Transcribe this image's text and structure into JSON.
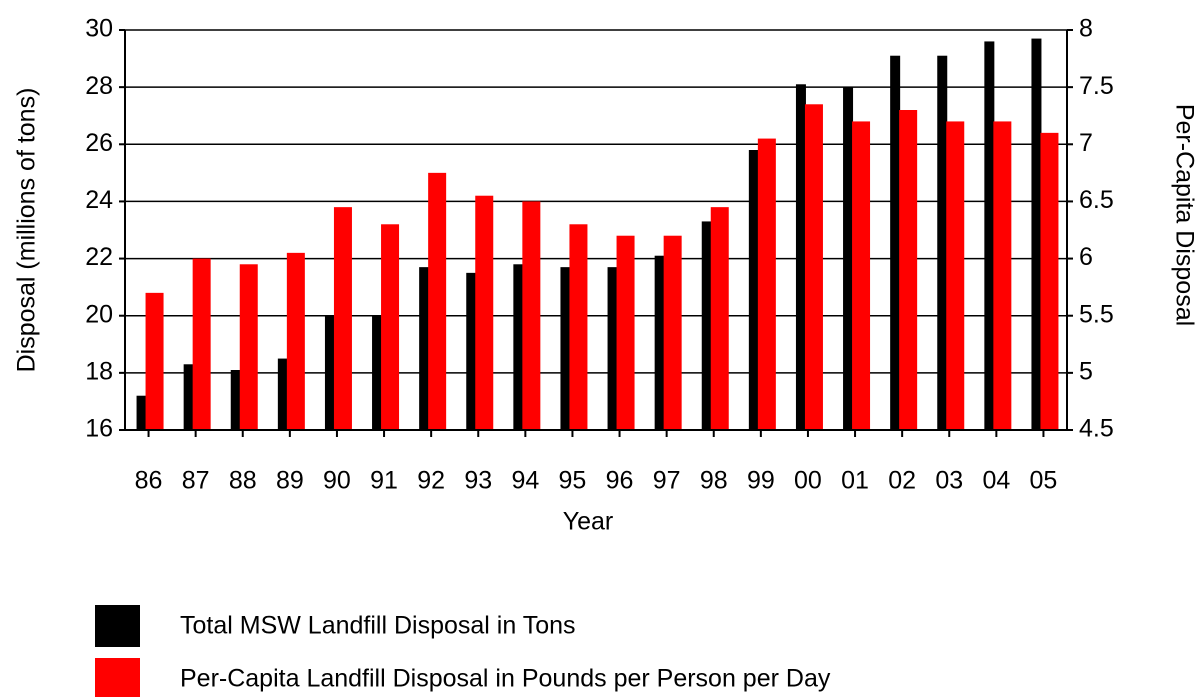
{
  "chart_data": {
    "type": "bar",
    "xlabel": "Year",
    "ylabel": "Disposal (millions of tons)",
    "y2label": "Per-Capita Disposal",
    "categories": [
      "86",
      "87",
      "88",
      "89",
      "90",
      "91",
      "92",
      "93",
      "94",
      "95",
      "96",
      "97",
      "98",
      "99",
      "00",
      "01",
      "02",
      "03",
      "04",
      "05"
    ],
    "series": [
      {
        "name": "Total MSW Landfill Disposal in Tons",
        "color": "#000000",
        "axis": "y",
        "values": [
          17.2,
          18.3,
          18.1,
          18.5,
          20.0,
          20.0,
          21.7,
          21.5,
          21.8,
          21.7,
          21.7,
          22.1,
          23.3,
          25.8,
          28.1,
          28.0,
          29.1,
          29.1,
          29.6,
          29.7
        ]
      },
      {
        "name": "Per-Capita Landfill Disposal in Pounds per Person per Day",
        "color": "#ff0000",
        "axis": "y2",
        "values": [
          5.7,
          6.0,
          5.95,
          6.05,
          6.45,
          6.3,
          6.75,
          6.55,
          6.5,
          6.3,
          6.2,
          6.2,
          6.45,
          7.05,
          7.35,
          7.2,
          7.3,
          7.2,
          7.2,
          7.1
        ]
      }
    ],
    "ylim": [
      16,
      30
    ],
    "yticks": [
      16,
      18,
      20,
      22,
      24,
      26,
      28,
      30
    ],
    "y2lim": [
      4.5,
      8
    ],
    "y2ticks": [
      4.5,
      5,
      5.5,
      6,
      6.5,
      7,
      7.5,
      8
    ],
    "grid": true
  }
}
